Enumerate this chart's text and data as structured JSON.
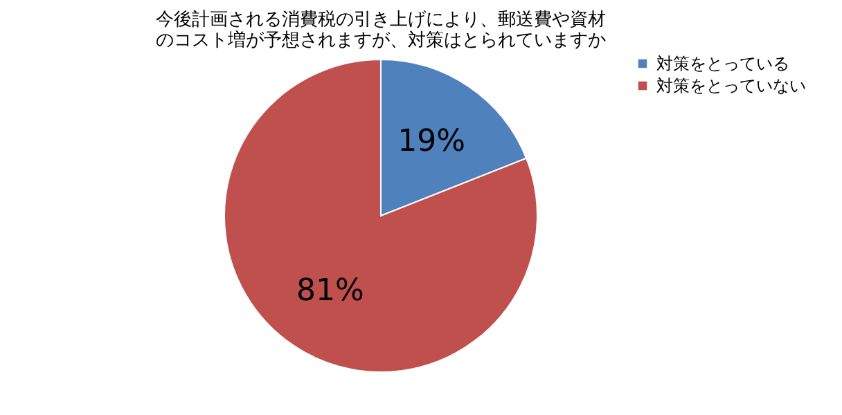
{
  "chart_data": {
    "type": "pie",
    "title": "今後計画される消費税の引き上げにより、郵送費や資材のコスト増が予想されますが、対策はとられていますか",
    "categories": [
      "対策をとっている",
      "対策をとっていない"
    ],
    "values": [
      19,
      81
    ],
    "colors": [
      "#4f81bd",
      "#c0504d"
    ],
    "value_labels": [
      "19%",
      "81%"
    ],
    "legend": "right"
  }
}
